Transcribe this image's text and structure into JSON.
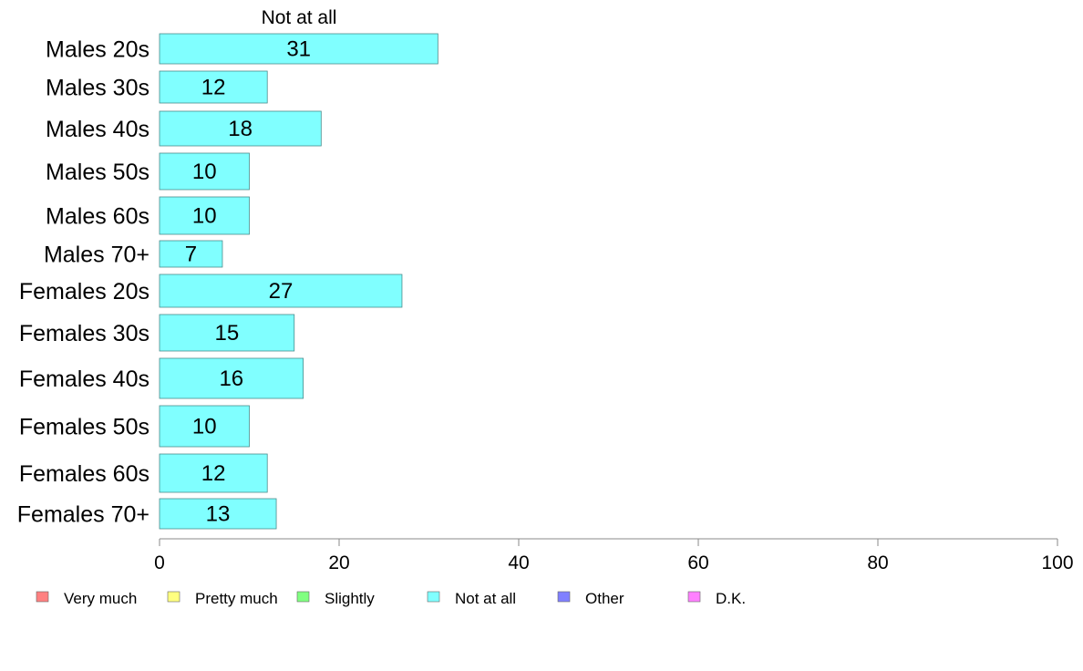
{
  "chart_data": {
    "type": "bar",
    "orientation": "horizontal",
    "stacked": true,
    "categories": [
      "Males 20s",
      "Males 30s",
      "Males 40s",
      "Males 50s",
      "Males 60s",
      "Males 70+",
      "Females 20s",
      "Females 30s",
      "Females 40s",
      "Females 50s",
      "Females 60s",
      "Females 70+"
    ],
    "series": [
      {
        "name": "Not at all",
        "color": "#80ffff",
        "values": [
          31,
          12,
          18,
          10,
          10,
          7,
          27,
          15,
          16,
          10,
          12,
          13
        ]
      }
    ],
    "data_labels": [
      "31",
      "12",
      "18",
      "10",
      "10",
      "7",
      "27",
      "15",
      "16",
      "10",
      "12",
      "13"
    ],
    "series_title": "Not at all",
    "xlim": [
      0,
      100
    ],
    "x_ticks": [
      0,
      20,
      40,
      60,
      80,
      100
    ],
    "x_tick_labels": [
      "0",
      "20",
      "40",
      "60",
      "80",
      "100"
    ],
    "grid": false,
    "legend_position": "bottom",
    "legend": [
      {
        "label": "Very much",
        "color": "#ff8080"
      },
      {
        "label": "Pretty much",
        "color": "#ffff80"
      },
      {
        "label": "Slightly",
        "color": "#80ff80"
      },
      {
        "label": "Not at all",
        "color": "#80ffff"
      },
      {
        "label": "Other",
        "color": "#8080ff"
      },
      {
        "label": "D.K.",
        "color": "#ff80ff"
      }
    ]
  }
}
